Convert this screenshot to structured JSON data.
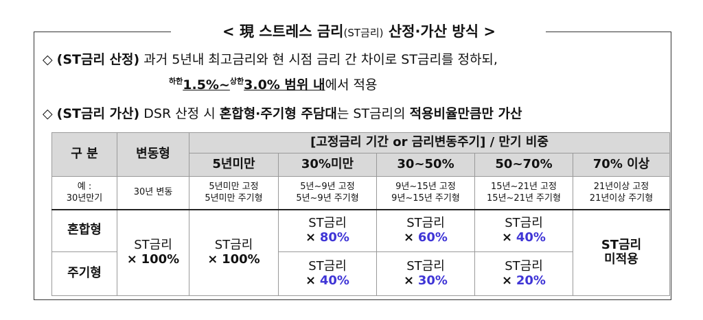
{
  "title": {
    "main_left": "< 現 스트레스 금리",
    "main_small": "(ST금리)",
    "main_right": "산정·가산 방식 >"
  },
  "point1": {
    "bullet": "◇",
    "label": "(ST금리 산정)",
    "text": "과거 5년내 최고금리와 현 시점 금리 간 차이로 ST금리를 정하되,",
    "lower_sup": "하한",
    "lower_val": "1.5%~",
    "upper_sup": "상한",
    "upper_val": "3.0% 범위 내",
    "tail": "에서 적용"
  },
  "point2": {
    "bullet": "◇",
    "label": "(ST금리 가산)",
    "text_a": "DSR 산정 시",
    "text_b": "혼합형·주기형 주담대",
    "text_c": "는 ST금리의",
    "text_d": "적용비율만큼만 가산"
  },
  "table": {
    "h_category": "구 분",
    "h_variable": "변동형",
    "h_group": "[고정금리 기간 or 금리변동주기] / 만기 비중",
    "h_cols": [
      "5년미만",
      "30%미만",
      "30~50%",
      "50~70%",
      "70% 이상"
    ],
    "ex_label_1": "예 :",
    "ex_label_2": "30년만기",
    "ex_variable": "30년 변동",
    "ex_cols": [
      {
        "l1": "5년미만 고정",
        "l2": "5년미만 주기형"
      },
      {
        "l1": "5년~9년 고정",
        "l2": "5년~9년 주기형"
      },
      {
        "l1": "9년~15년 고정",
        "l2": "9년~15년 주기형"
      },
      {
        "l1": "15년~21년 고정",
        "l2": "15년~21년 주기형"
      },
      {
        "l1": "21년이상 고정",
        "l2": "21년이상 주기형"
      }
    ],
    "row_mixed": "혼합형",
    "row_cycle": "주기형",
    "st": "ST금리",
    "mul": "×",
    "variable_rate": "100%",
    "under5_rate": "100%",
    "mixed_rates": [
      "80%",
      "60%",
      "40%"
    ],
    "cycle_rates": [
      "40%",
      "30%",
      "20%"
    ],
    "not_applied_1": "ST금리",
    "not_applied_2": "미적용"
  }
}
